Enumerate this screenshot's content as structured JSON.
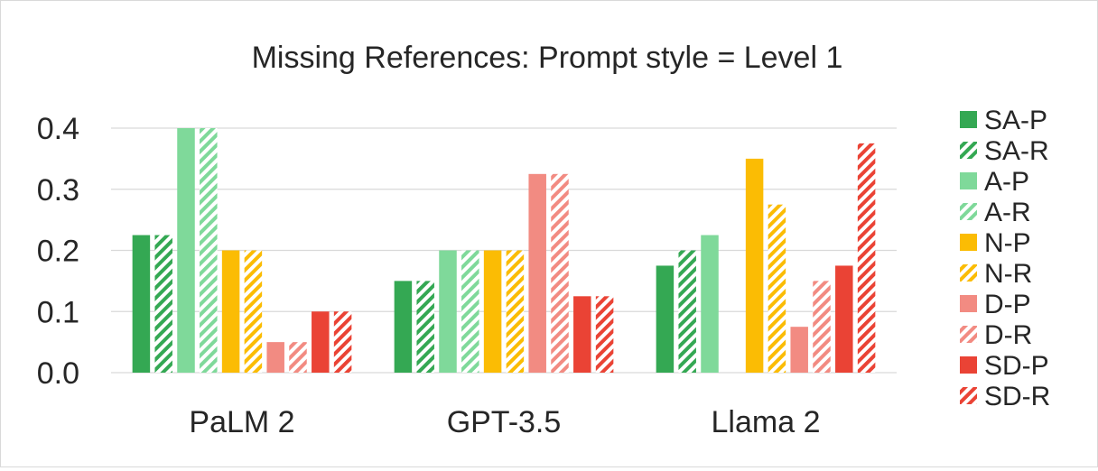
{
  "chart_data": {
    "type": "bar",
    "title": "Missing References: Prompt style = Level 1",
    "xlabel": "",
    "ylabel": "",
    "ylim": [
      0,
      0.4
    ],
    "yticks": [
      "0.0",
      "0.1",
      "0.2",
      "0.3",
      "0.4"
    ],
    "grid": true,
    "legend_position": "right",
    "categories": [
      "PaLM 2",
      "GPT-3.5",
      "Llama 2"
    ],
    "series": [
      {
        "name": "SA-P",
        "color": "#34a853",
        "pattern": "solid",
        "values": [
          0.225,
          0.15,
          0.175
        ]
      },
      {
        "name": "SA-R",
        "color": "#34a853",
        "pattern": "hatched",
        "values": [
          0.225,
          0.15,
          0.2
        ]
      },
      {
        "name": "A-P",
        "color": "#7fd99a",
        "pattern": "solid",
        "values": [
          0.4,
          0.2,
          0.225
        ]
      },
      {
        "name": "A-R",
        "color": "#7fd99a",
        "pattern": "hatched",
        "values": [
          0.4,
          0.2,
          0.0
        ]
      },
      {
        "name": "N-P",
        "color": "#fbbc04",
        "pattern": "solid",
        "values": [
          0.2,
          0.2,
          0.35
        ]
      },
      {
        "name": "N-R",
        "color": "#fbbc04",
        "pattern": "hatched",
        "values": [
          0.2,
          0.2,
          0.275
        ]
      },
      {
        "name": "D-P",
        "color": "#f28b82",
        "pattern": "solid",
        "values": [
          0.05,
          0.325,
          0.075
        ]
      },
      {
        "name": "D-R",
        "color": "#f28b82",
        "pattern": "hatched",
        "values": [
          0.05,
          0.325,
          0.15
        ]
      },
      {
        "name": "SD-P",
        "color": "#ea4335",
        "pattern": "solid",
        "values": [
          0.1,
          0.125,
          0.175
        ]
      },
      {
        "name": "SD-R",
        "color": "#ea4335",
        "pattern": "hatched",
        "values": [
          0.1,
          0.125,
          0.375
        ]
      }
    ]
  }
}
